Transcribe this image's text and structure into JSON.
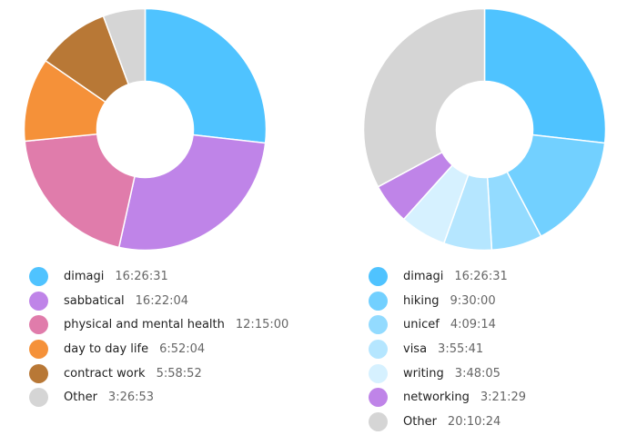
{
  "chart_data": [
    {
      "type": "pie",
      "style": "donut",
      "title": "",
      "legend_position": "bottom",
      "slices": [
        {
          "label": "dimagi",
          "value_text": "16:26:31",
          "seconds": 59191,
          "color": "#4fc3ff"
        },
        {
          "label": "sabbatical",
          "value_text": "16:22:04",
          "seconds": 58924,
          "color": "#bf84e8"
        },
        {
          "label": "physical and mental health",
          "value_text": "12:15:00",
          "seconds": 44100,
          "color": "#e07cab"
        },
        {
          "label": "day to day life",
          "value_text": "6:52:04",
          "seconds": 24724,
          "color": "#f59139"
        },
        {
          "label": "contract work",
          "value_text": "5:58:52",
          "seconds": 21532,
          "color": "#b87836"
        },
        {
          "label": "Other",
          "value_text": "3:26:53",
          "seconds": 12413,
          "color": "#d5d5d5"
        }
      ]
    },
    {
      "type": "pie",
      "style": "donut",
      "title": "",
      "legend_position": "bottom",
      "slices": [
        {
          "label": "dimagi",
          "value_text": "16:26:31",
          "seconds": 59191,
          "color": "#4fc3ff"
        },
        {
          "label": "hiking",
          "value_text": "9:30:00",
          "seconds": 34200,
          "color": "#72d0ff"
        },
        {
          "label": "unicef",
          "value_text": "4:09:14",
          "seconds": 14954,
          "color": "#93dbff"
        },
        {
          "label": "visa",
          "value_text": "3:55:41",
          "seconds": 14141,
          "color": "#b5e6ff"
        },
        {
          "label": "writing",
          "value_text": "3:48:05",
          "seconds": 13685,
          "color": "#d6f1ff"
        },
        {
          "label": "networking",
          "value_text": "3:21:29",
          "seconds": 12089,
          "color": "#bf84e8"
        },
        {
          "label": "Other",
          "value_text": "20:10:24",
          "seconds": 72624,
          "color": "#d5d5d5"
        }
      ]
    }
  ]
}
